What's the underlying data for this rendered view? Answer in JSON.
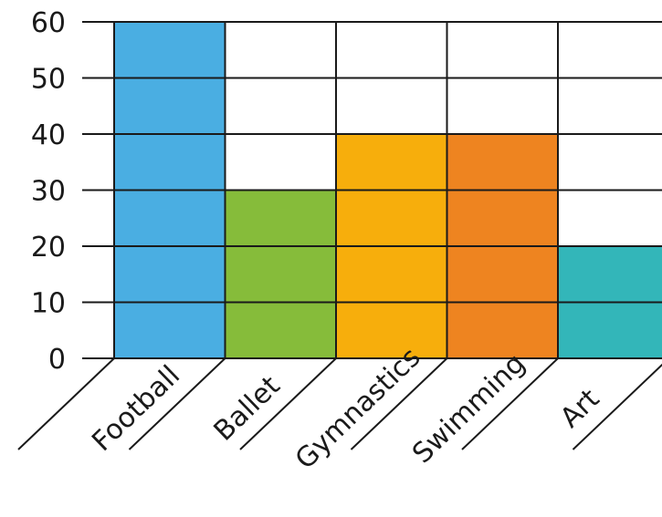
{
  "chart_data": {
    "type": "bar",
    "title": "",
    "xlabel": "",
    "ylabel": "",
    "categories": [
      "Football",
      "Ballet",
      "Gymnastics",
      "Swimming",
      "Art"
    ],
    "values": [
      60,
      30,
      40,
      40,
      20
    ],
    "colors": [
      "#4aaee2",
      "#86bc3a",
      "#f7ae0c",
      "#ee8420",
      "#33b6b9"
    ],
    "ylim": [
      0,
      60
    ],
    "yticks": [
      0,
      10,
      20,
      30,
      40,
      50,
      60
    ],
    "grid": true,
    "legend": "none"
  }
}
